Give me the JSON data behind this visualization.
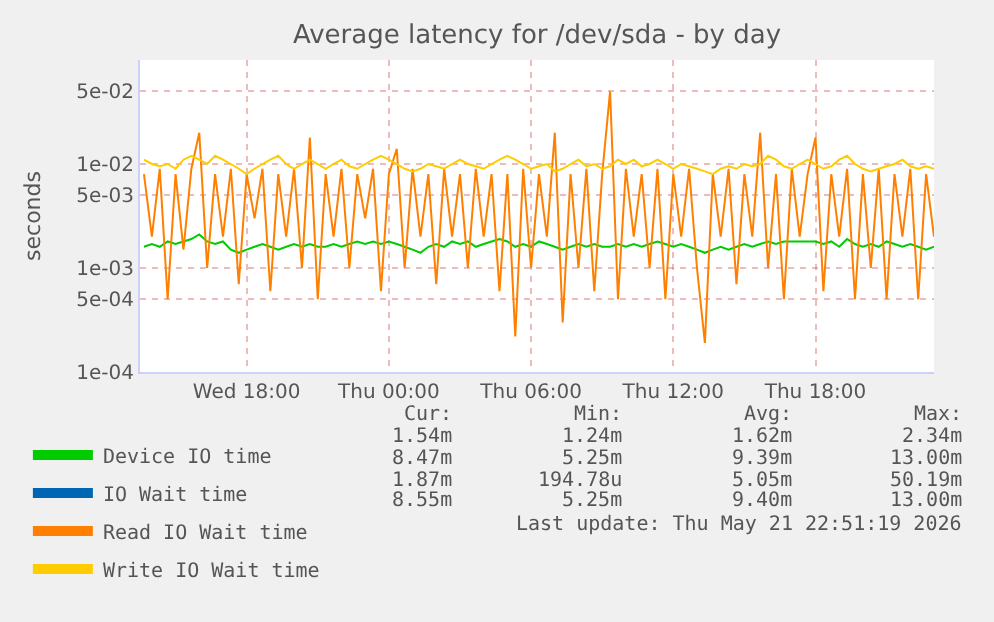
{
  "chart_data": {
    "type": "line",
    "title": "Average latency for /dev/sda - by day",
    "ylabel": "seconds",
    "x": [
      "2026-05-20T13:40",
      "2026-05-20T14:00",
      "2026-05-20T14:20",
      "2026-05-20T14:40",
      "2026-05-20T15:00",
      "2026-05-20T15:20",
      "2026-05-20T15:40",
      "2026-05-20T16:00",
      "2026-05-20T16:20",
      "2026-05-20T16:40",
      "2026-05-20T17:00",
      "2026-05-20T17:20",
      "2026-05-20T17:40",
      "2026-05-20T18:00",
      "2026-05-20T18:20",
      "2026-05-20T18:40",
      "2026-05-20T19:00",
      "2026-05-20T19:20",
      "2026-05-20T19:40",
      "2026-05-20T20:00",
      "2026-05-20T20:20",
      "2026-05-20T20:40",
      "2026-05-20T21:00",
      "2026-05-20T21:20",
      "2026-05-20T21:40",
      "2026-05-20T22:00",
      "2026-05-20T22:20",
      "2026-05-20T22:40",
      "2026-05-20T23:00",
      "2026-05-20T23:20",
      "2026-05-20T23:40",
      "2026-05-21T00:00",
      "2026-05-21T00:20",
      "2026-05-21T00:40",
      "2026-05-21T01:00",
      "2026-05-21T01:20",
      "2026-05-21T01:40",
      "2026-05-21T02:00",
      "2026-05-21T02:20",
      "2026-05-21T02:40",
      "2026-05-21T03:00",
      "2026-05-21T03:20",
      "2026-05-21T03:40",
      "2026-05-21T04:00",
      "2026-05-21T04:20",
      "2026-05-21T04:40",
      "2026-05-21T05:00",
      "2026-05-21T05:20",
      "2026-05-21T05:40",
      "2026-05-21T06:00",
      "2026-05-21T06:20",
      "2026-05-21T06:40",
      "2026-05-21T07:00",
      "2026-05-21T07:20",
      "2026-05-21T07:40",
      "2026-05-21T08:00",
      "2026-05-21T08:20",
      "2026-05-21T08:40",
      "2026-05-21T09:00",
      "2026-05-21T09:20",
      "2026-05-21T09:40",
      "2026-05-21T10:00",
      "2026-05-21T10:20",
      "2026-05-21T10:40",
      "2026-05-21T11:00",
      "2026-05-21T11:20",
      "2026-05-21T11:40",
      "2026-05-21T12:00",
      "2026-05-21T12:20",
      "2026-05-21T12:40",
      "2026-05-21T13:00",
      "2026-05-21T13:20",
      "2026-05-21T13:40",
      "2026-05-21T14:00",
      "2026-05-21T14:20",
      "2026-05-21T14:40",
      "2026-05-21T15:00",
      "2026-05-21T15:20",
      "2026-05-21T15:40",
      "2026-05-21T16:00",
      "2026-05-21T16:20",
      "2026-05-21T16:40",
      "2026-05-21T17:00",
      "2026-05-21T17:20",
      "2026-05-21T17:40",
      "2026-05-21T18:00",
      "2026-05-21T18:20",
      "2026-05-21T18:40",
      "2026-05-21T19:00",
      "2026-05-21T19:20",
      "2026-05-21T19:40",
      "2026-05-21T20:00",
      "2026-05-21T20:20",
      "2026-05-21T20:40",
      "2026-05-21T21:00",
      "2026-05-21T21:20",
      "2026-05-21T21:40",
      "2026-05-21T22:00",
      "2026-05-21T22:20",
      "2026-05-21T22:40",
      "2026-05-21T23:00"
    ],
    "series": [
      {
        "name": "Device IO time",
        "color": "#00cc00",
        "values": [
          0.0016,
          0.0017,
          0.0016,
          0.0018,
          0.0017,
          0.0018,
          0.0019,
          0.0021,
          0.0018,
          0.0017,
          0.0018,
          0.0015,
          0.0014,
          0.0015,
          0.0016,
          0.0017,
          0.0016,
          0.0015,
          0.0016,
          0.0017,
          0.0016,
          0.0017,
          0.0016,
          0.0016,
          0.0017,
          0.0016,
          0.0017,
          0.0018,
          0.0017,
          0.0018,
          0.0017,
          0.0018,
          0.0017,
          0.0016,
          0.0015,
          0.0014,
          0.0016,
          0.0017,
          0.0016,
          0.0018,
          0.0017,
          0.0018,
          0.0016,
          0.0017,
          0.0018,
          0.0019,
          0.0018,
          0.0016,
          0.0017,
          0.0016,
          0.0018,
          0.0017,
          0.0016,
          0.0015,
          0.0016,
          0.0017,
          0.0016,
          0.0017,
          0.0016,
          0.0016,
          0.0017,
          0.0016,
          0.0017,
          0.0016,
          0.0017,
          0.0018,
          0.0017,
          0.0016,
          0.0017,
          0.0016,
          0.0015,
          0.0014,
          0.0015,
          0.0016,
          0.0015,
          0.0016,
          0.0017,
          0.0016,
          0.0017,
          0.0018,
          0.0017,
          0.0018,
          0.0018,
          0.0018,
          0.0018,
          0.0018,
          0.0017,
          0.0018,
          0.0016,
          0.0019,
          0.0017,
          0.0016,
          0.0017,
          0.0016,
          0.0018,
          0.0017,
          0.0016,
          0.0017,
          0.0016,
          0.0015,
          0.0016
        ]
      },
      {
        "name": "IO Wait time",
        "color": "#0066b3",
        "values": [
          null,
          null,
          null,
          null,
          null,
          null,
          null,
          null,
          null,
          null,
          null,
          null,
          null,
          null,
          null,
          null,
          null,
          null,
          null,
          null,
          null,
          null,
          null,
          null,
          null,
          null,
          null,
          null,
          null,
          null,
          null,
          null,
          null,
          null,
          null,
          null,
          null,
          null,
          null,
          null,
          null,
          null,
          null,
          null,
          null,
          null,
          null,
          null,
          null,
          null,
          null,
          null,
          null,
          null,
          null,
          null,
          null,
          null,
          null,
          null,
          null,
          null,
          null,
          null,
          null,
          null,
          null,
          null,
          null,
          null,
          null,
          null,
          null,
          null,
          null,
          null,
          null,
          null,
          null,
          null,
          null,
          null,
          null,
          null,
          null,
          null,
          null,
          null,
          null,
          null,
          null,
          null,
          null,
          null,
          null,
          null,
          null,
          null,
          null,
          null,
          null
        ]
      },
      {
        "name": "Read IO Wait time",
        "color": "#ff8000",
        "values": [
          0.008,
          0.002,
          0.009,
          0.0005,
          0.008,
          0.0015,
          0.009,
          0.02,
          0.001,
          0.008,
          0.002,
          0.009,
          0.0007,
          0.008,
          0.003,
          0.009,
          0.0006,
          0.008,
          0.002,
          0.009,
          0.001,
          0.018,
          0.0005,
          0.008,
          0.002,
          0.009,
          0.001,
          0.008,
          0.003,
          0.009,
          0.0006,
          0.008,
          0.014,
          0.001,
          0.009,
          0.002,
          0.008,
          0.0007,
          0.009,
          0.002,
          0.008,
          0.001,
          0.009,
          0.002,
          0.008,
          0.0006,
          0.008,
          0.00022,
          0.009,
          0.001,
          0.008,
          0.002,
          0.02,
          0.0003,
          0.008,
          0.001,
          0.009,
          0.0006,
          0.008,
          0.05,
          0.0005,
          0.009,
          0.002,
          0.008,
          0.001,
          0.009,
          0.0005,
          0.008,
          0.002,
          0.009,
          0.001,
          0.00019,
          0.008,
          0.002,
          0.009,
          0.0007,
          0.008,
          0.002,
          0.02,
          0.001,
          0.008,
          0.0005,
          0.009,
          0.002,
          0.008,
          0.018,
          0.0006,
          0.008,
          0.002,
          0.009,
          0.0005,
          0.008,
          0.001,
          0.009,
          0.0005,
          0.008,
          0.002,
          0.009,
          0.0005,
          0.008,
          0.002
        ]
      },
      {
        "name": "Write IO Wait time",
        "color": "#ffcc00",
        "values": [
          0.011,
          0.01,
          0.0095,
          0.01,
          0.009,
          0.011,
          0.012,
          0.011,
          0.01,
          0.012,
          0.011,
          0.01,
          0.009,
          0.008,
          0.009,
          0.01,
          0.011,
          0.012,
          0.01,
          0.009,
          0.01,
          0.011,
          0.01,
          0.009,
          0.01,
          0.011,
          0.0095,
          0.009,
          0.01,
          0.011,
          0.012,
          0.011,
          0.01,
          0.009,
          0.0085,
          0.009,
          0.01,
          0.0095,
          0.009,
          0.01,
          0.011,
          0.01,
          0.0095,
          0.009,
          0.01,
          0.011,
          0.012,
          0.011,
          0.01,
          0.009,
          0.0095,
          0.01,
          0.0085,
          0.009,
          0.01,
          0.011,
          0.0095,
          0.01,
          0.009,
          0.0095,
          0.011,
          0.01,
          0.011,
          0.0095,
          0.01,
          0.011,
          0.01,
          0.009,
          0.01,
          0.0095,
          0.009,
          0.0085,
          0.008,
          0.009,
          0.0095,
          0.009,
          0.01,
          0.0095,
          0.01,
          0.012,
          0.011,
          0.0095,
          0.009,
          0.01,
          0.011,
          0.01,
          0.009,
          0.0095,
          0.011,
          0.012,
          0.01,
          0.009,
          0.0085,
          0.009,
          0.0095,
          0.01,
          0.011,
          0.0095,
          0.009,
          0.0095,
          0.009
        ]
      }
    ],
    "log": "y",
    "ylim": [
      0.0001,
      0.1
    ],
    "yticks": [
      {
        "value": 0.0001,
        "label": "1e-04"
      },
      {
        "value": 0.0005,
        "label": "5e-04"
      },
      {
        "value": 0.001,
        "label": "1e-03"
      },
      {
        "value": 0.005,
        "label": "5e-03"
      },
      {
        "value": 0.01,
        "label": "1e-02"
      },
      {
        "value": 0.05,
        "label": "5e-02"
      }
    ],
    "xlim": [
      "2026-05-20T13:30",
      "2026-05-21T23:00"
    ],
    "xticks": [
      {
        "value": "2026-05-20T18:00",
        "label": "Wed 18:00"
      },
      {
        "value": "2026-05-21T00:00",
        "label": "Thu 00:00"
      },
      {
        "value": "2026-05-21T06:00",
        "label": "Thu 06:00"
      },
      {
        "value": "2026-05-21T12:00",
        "label": "Thu 12:00"
      },
      {
        "value": "2026-05-21T18:00",
        "label": "Thu 18:00"
      }
    ],
    "grid": true,
    "legend": "bottom",
    "annotations": [
      "Cur:",
      "Min:",
      "Avg:",
      "Max:",
      "1.54m",
      "1.24m",
      "1.62m",
      "2.34m",
      "8.47m",
      "5.25m",
      "9.39m",
      "13.00m",
      "1.87m",
      "194.78u",
      "5.05m",
      "50.19m",
      "8.55m",
      "5.25m",
      "9.40m",
      "13.00m",
      "Last update: Thu May 21 22:51:19 2026"
    ]
  }
}
